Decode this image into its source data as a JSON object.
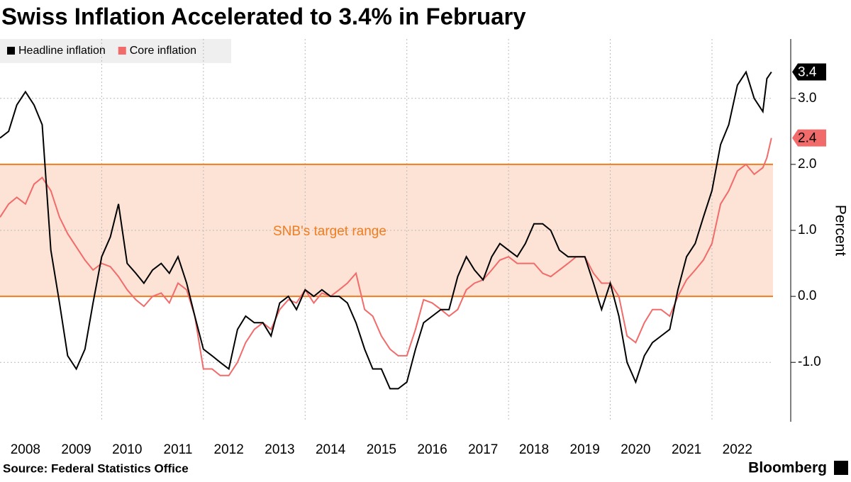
{
  "chart_data": {
    "type": "line",
    "title": "Swiss Inflation Accelerated to 3.4% in February",
    "y_label": "Percent",
    "source": "Source: Federal Statistics Office",
    "brand": "Bloomberg",
    "band": {
      "range": [
        0,
        2
      ],
      "label": "SNB's target range",
      "color": "#fde3d5",
      "edge_color": "#f07d20"
    },
    "legend": "top-left",
    "x": [
      2008,
      2008.17,
      2008.33,
      2008.5,
      2008.67,
      2008.83,
      2009,
      2009.17,
      2009.33,
      2009.5,
      2009.67,
      2009.83,
      2010,
      2010.17,
      2010.33,
      2010.5,
      2010.67,
      2010.83,
      2011,
      2011.17,
      2011.33,
      2011.5,
      2011.67,
      2011.83,
      2012,
      2012.17,
      2012.33,
      2012.5,
      2012.67,
      2012.83,
      2013,
      2013.17,
      2013.33,
      2013.5,
      2013.67,
      2013.83,
      2014,
      2014.17,
      2014.33,
      2014.5,
      2014.67,
      2014.83,
      2015,
      2015.17,
      2015.33,
      2015.5,
      2015.67,
      2015.83,
      2016,
      2016.17,
      2016.33,
      2016.5,
      2016.67,
      2016.83,
      2017,
      2017.17,
      2017.33,
      2017.5,
      2017.67,
      2017.83,
      2018,
      2018.17,
      2018.33,
      2018.5,
      2018.67,
      2018.83,
      2019,
      2019.17,
      2019.33,
      2019.5,
      2019.67,
      2019.83,
      2020,
      2020.17,
      2020.33,
      2020.5,
      2020.67,
      2020.83,
      2021,
      2021.17,
      2021.33,
      2021.5,
      2021.67,
      2021.83,
      2022,
      2022.17,
      2022.33,
      2022.5,
      2022.67,
      2022.83,
      2023,
      2023.08,
      2023.17
    ],
    "series": [
      {
        "name": "Headline inflation",
        "color": "#000000",
        "tag_text_color": "#ffffff",
        "values": [
          2.4,
          2.5,
          2.9,
          3.1,
          2.9,
          2.6,
          0.7,
          -0.1,
          -0.9,
          -1.1,
          -0.8,
          -0.1,
          0.6,
          0.9,
          1.4,
          0.5,
          0.35,
          0.2,
          0.4,
          0.5,
          0.35,
          0.6,
          0.2,
          -0.3,
          -0.8,
          -0.9,
          -1.0,
          -1.1,
          -0.5,
          -0.3,
          -0.4,
          -0.4,
          -0.6,
          -0.1,
          0.0,
          -0.2,
          0.1,
          0.0,
          0.1,
          0.0,
          0.0,
          -0.1,
          -0.4,
          -0.8,
          -1.1,
          -1.1,
          -1.4,
          -1.4,
          -1.3,
          -0.8,
          -0.4,
          -0.3,
          -0.2,
          -0.2,
          0.3,
          0.6,
          0.4,
          0.25,
          0.6,
          0.8,
          0.7,
          0.6,
          0.8,
          1.1,
          1.1,
          1.0,
          0.7,
          0.6,
          0.6,
          0.6,
          0.2,
          -0.2,
          0.2,
          -0.3,
          -1.0,
          -1.3,
          -0.9,
          -0.7,
          -0.6,
          -0.5,
          0.1,
          0.6,
          0.8,
          1.2,
          1.6,
          2.3,
          2.6,
          3.2,
          3.4,
          3.0,
          2.8,
          3.3,
          3.4
        ]
      },
      {
        "name": "Core inflation",
        "color": "#f26b6b",
        "tag_text_color": "#000000",
        "values": [
          1.2,
          1.4,
          1.5,
          1.4,
          1.7,
          1.8,
          1.6,
          1.2,
          0.95,
          0.75,
          0.55,
          0.4,
          0.5,
          0.45,
          0.3,
          0.1,
          -0.05,
          -0.15,
          0.0,
          0.05,
          -0.1,
          0.2,
          0.1,
          -0.3,
          -1.1,
          -1.1,
          -1.2,
          -1.2,
          -1.0,
          -0.7,
          -0.5,
          -0.4,
          -0.5,
          -0.2,
          -0.05,
          -0.1,
          0.1,
          -0.1,
          0.05,
          0.0,
          0.1,
          0.2,
          0.35,
          -0.2,
          -0.3,
          -0.6,
          -0.8,
          -0.9,
          -0.9,
          -0.5,
          -0.05,
          -0.1,
          -0.2,
          -0.3,
          -0.2,
          0.1,
          0.2,
          0.25,
          0.4,
          0.55,
          0.6,
          0.5,
          0.5,
          0.5,
          0.35,
          0.3,
          0.4,
          0.5,
          0.6,
          0.6,
          0.35,
          0.2,
          0.2,
          0.0,
          -0.6,
          -0.7,
          -0.4,
          -0.2,
          -0.2,
          -0.3,
          0.0,
          0.25,
          0.4,
          0.55,
          0.8,
          1.4,
          1.6,
          1.9,
          2.0,
          1.85,
          1.95,
          2.1,
          2.4
        ]
      }
    ],
    "xlim": [
      2008,
      2023.2
    ],
    "ylim": [
      -1.9,
      3.9
    ],
    "yticks": [
      {
        "value": -1,
        "label": "-1.0"
      },
      {
        "value": 0,
        "label": "0.0"
      },
      {
        "value": 1,
        "label": "1.0"
      },
      {
        "value": 2,
        "label": "2.0"
      },
      {
        "value": 3,
        "label": "3.0"
      }
    ],
    "xticks": [
      {
        "value": 2008.5,
        "label": "2008"
      },
      {
        "value": 2009.5,
        "label": "2009"
      },
      {
        "value": 2010.5,
        "label": "2010"
      },
      {
        "value": 2011.5,
        "label": "2011"
      },
      {
        "value": 2012.5,
        "label": "2012"
      },
      {
        "value": 2013.5,
        "label": "2013"
      },
      {
        "value": 2014.5,
        "label": "2014"
      },
      {
        "value": 2015.5,
        "label": "2015"
      },
      {
        "value": 2016.5,
        "label": "2016"
      },
      {
        "value": 2017.5,
        "label": "2017"
      },
      {
        "value": 2018.5,
        "label": "2018"
      },
      {
        "value": 2019.5,
        "label": "2019"
      },
      {
        "value": 2020.5,
        "label": "2020"
      },
      {
        "value": 2021.5,
        "label": "2021"
      },
      {
        "value": 2022.5,
        "label": "2022"
      }
    ],
    "xgrid": [
      2010,
      2012,
      2014,
      2016,
      2018,
      2020,
      2022
    ],
    "grid": true
  }
}
